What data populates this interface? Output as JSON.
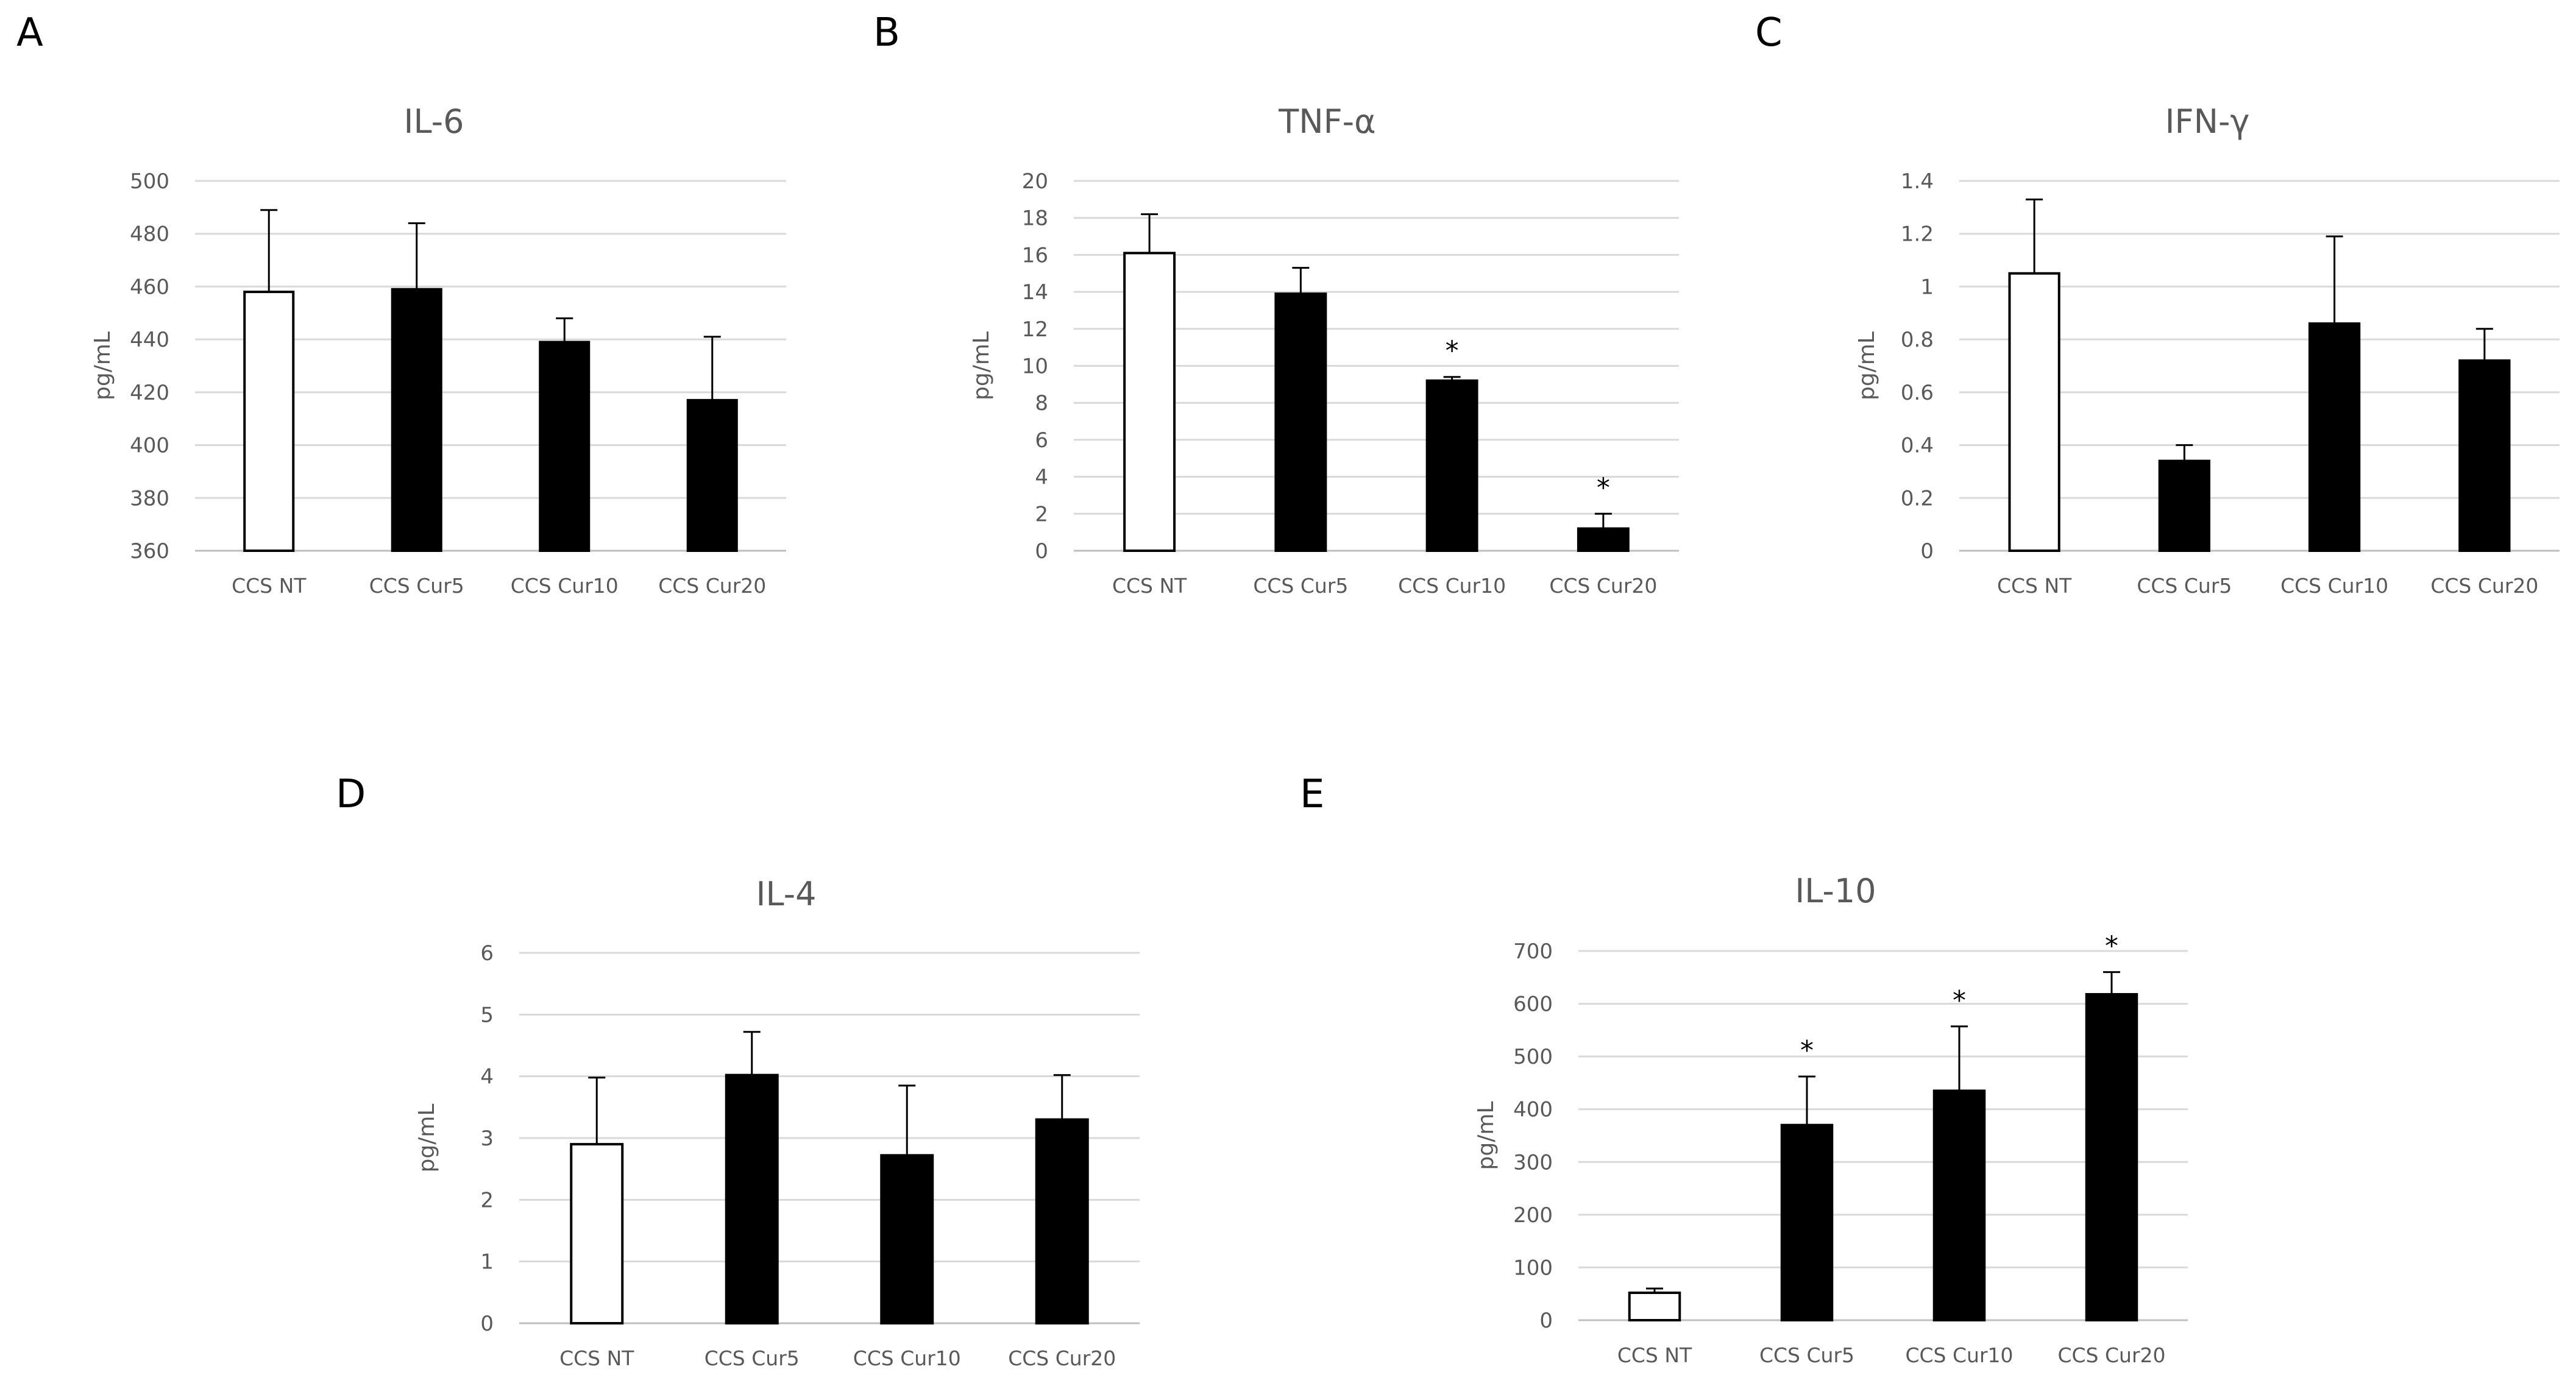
{
  "chart_data": [
    {
      "panel": "A",
      "type": "bar",
      "title": "IL-6",
      "ylabel": "pg/mL",
      "xlabel": "",
      "categories": [
        "CCS NT",
        "CCS Cur5",
        "CCS Cur10",
        "CCS Cur20"
      ],
      "values": [
        458,
        459,
        439,
        417
      ],
      "errors": [
        31,
        25,
        9,
        24
      ],
      "bar_colors": [
        "#ffffff",
        "#000000",
        "#000000",
        "#000000"
      ],
      "significance": [
        "",
        "",
        "",
        ""
      ],
      "ylim": [
        360,
        500
      ],
      "yticks": [
        360,
        380,
        400,
        420,
        440,
        460,
        480,
        500
      ],
      "ytick_labels": [
        "360",
        "380",
        "400",
        "420",
        "440",
        "460",
        "480",
        "500"
      ],
      "grid": true
    },
    {
      "panel": "B",
      "type": "bar",
      "title": "TNF-α",
      "ylabel": "pg/mL",
      "xlabel": "",
      "categories": [
        "CCS NT",
        "CCS Cur5",
        "CCS Cur10",
        "CCS Cur20"
      ],
      "values": [
        16.1,
        13.9,
        9.2,
        1.2
      ],
      "errors": [
        2.1,
        1.4,
        0.2,
        0.8
      ],
      "bar_colors": [
        "#ffffff",
        "#000000",
        "#000000",
        "#000000"
      ],
      "significance": [
        "",
        "",
        "*",
        "*"
      ],
      "ylim": [
        0,
        20
      ],
      "yticks": [
        0,
        2,
        4,
        6,
        8,
        10,
        12,
        14,
        16,
        18,
        20
      ],
      "ytick_labels": [
        "0",
        "2",
        "4",
        "6",
        "8",
        "10",
        "12",
        "14",
        "16",
        "18",
        "20"
      ],
      "grid": true
    },
    {
      "panel": "C",
      "type": "bar",
      "title": "IFN-γ",
      "ylabel": "pg/mL",
      "xlabel": "",
      "categories": [
        "CCS NT",
        "CCS Cur5",
        "CCS Cur10",
        "CCS Cur20"
      ],
      "values": [
        1.05,
        0.34,
        0.86,
        0.72
      ],
      "errors": [
        0.28,
        0.06,
        0.33,
        0.12
      ],
      "bar_colors": [
        "#ffffff",
        "#000000",
        "#000000",
        "#000000"
      ],
      "significance": [
        "",
        "",
        "",
        ""
      ],
      "ylim": [
        0,
        1.4
      ],
      "yticks": [
        0,
        0.2,
        0.4,
        0.6,
        0.8,
        1.0,
        1.2,
        1.4
      ],
      "ytick_labels": [
        "0",
        "0.2",
        "0.4",
        "0.6",
        "0.8",
        "1",
        "1.2",
        "1.4"
      ],
      "grid": true
    },
    {
      "panel": "D",
      "type": "bar",
      "title": "IL-4",
      "ylabel": "pg/mL",
      "xlabel": "",
      "categories": [
        "CCS NT",
        "CCS Cur5",
        "CCS Cur10",
        "CCS Cur20"
      ],
      "values": [
        2.9,
        4.02,
        2.72,
        3.3
      ],
      "errors": [
        1.08,
        0.7,
        1.13,
        0.72
      ],
      "bar_colors": [
        "#ffffff",
        "#000000",
        "#000000",
        "#000000"
      ],
      "significance": [
        "",
        "",
        "",
        ""
      ],
      "ylim": [
        0,
        6
      ],
      "yticks": [
        0,
        1,
        2,
        3,
        4,
        5,
        6
      ],
      "ytick_labels": [
        "0",
        "1",
        "2",
        "3",
        "4",
        "5",
        "6"
      ],
      "grid": true
    },
    {
      "panel": "E",
      "type": "bar",
      "title": "IL-10",
      "ylabel": "pg/mL",
      "xlabel": "",
      "categories": [
        "CCS NT",
        "CCS Cur5",
        "CCS Cur10",
        "CCS Cur20"
      ],
      "values": [
        52,
        370,
        435,
        618
      ],
      "errors": [
        8,
        92,
        122,
        42
      ],
      "bar_colors": [
        "#ffffff",
        "#000000",
        "#000000",
        "#000000"
      ],
      "significance": [
        "",
        "*",
        "*",
        "*"
      ],
      "ylim": [
        0,
        700
      ],
      "yticks": [
        0,
        100,
        200,
        300,
        400,
        500,
        600,
        700
      ],
      "ytick_labels": [
        "0",
        "100",
        "200",
        "300",
        "400",
        "500",
        "600",
        "700"
      ],
      "grid": true
    }
  ]
}
